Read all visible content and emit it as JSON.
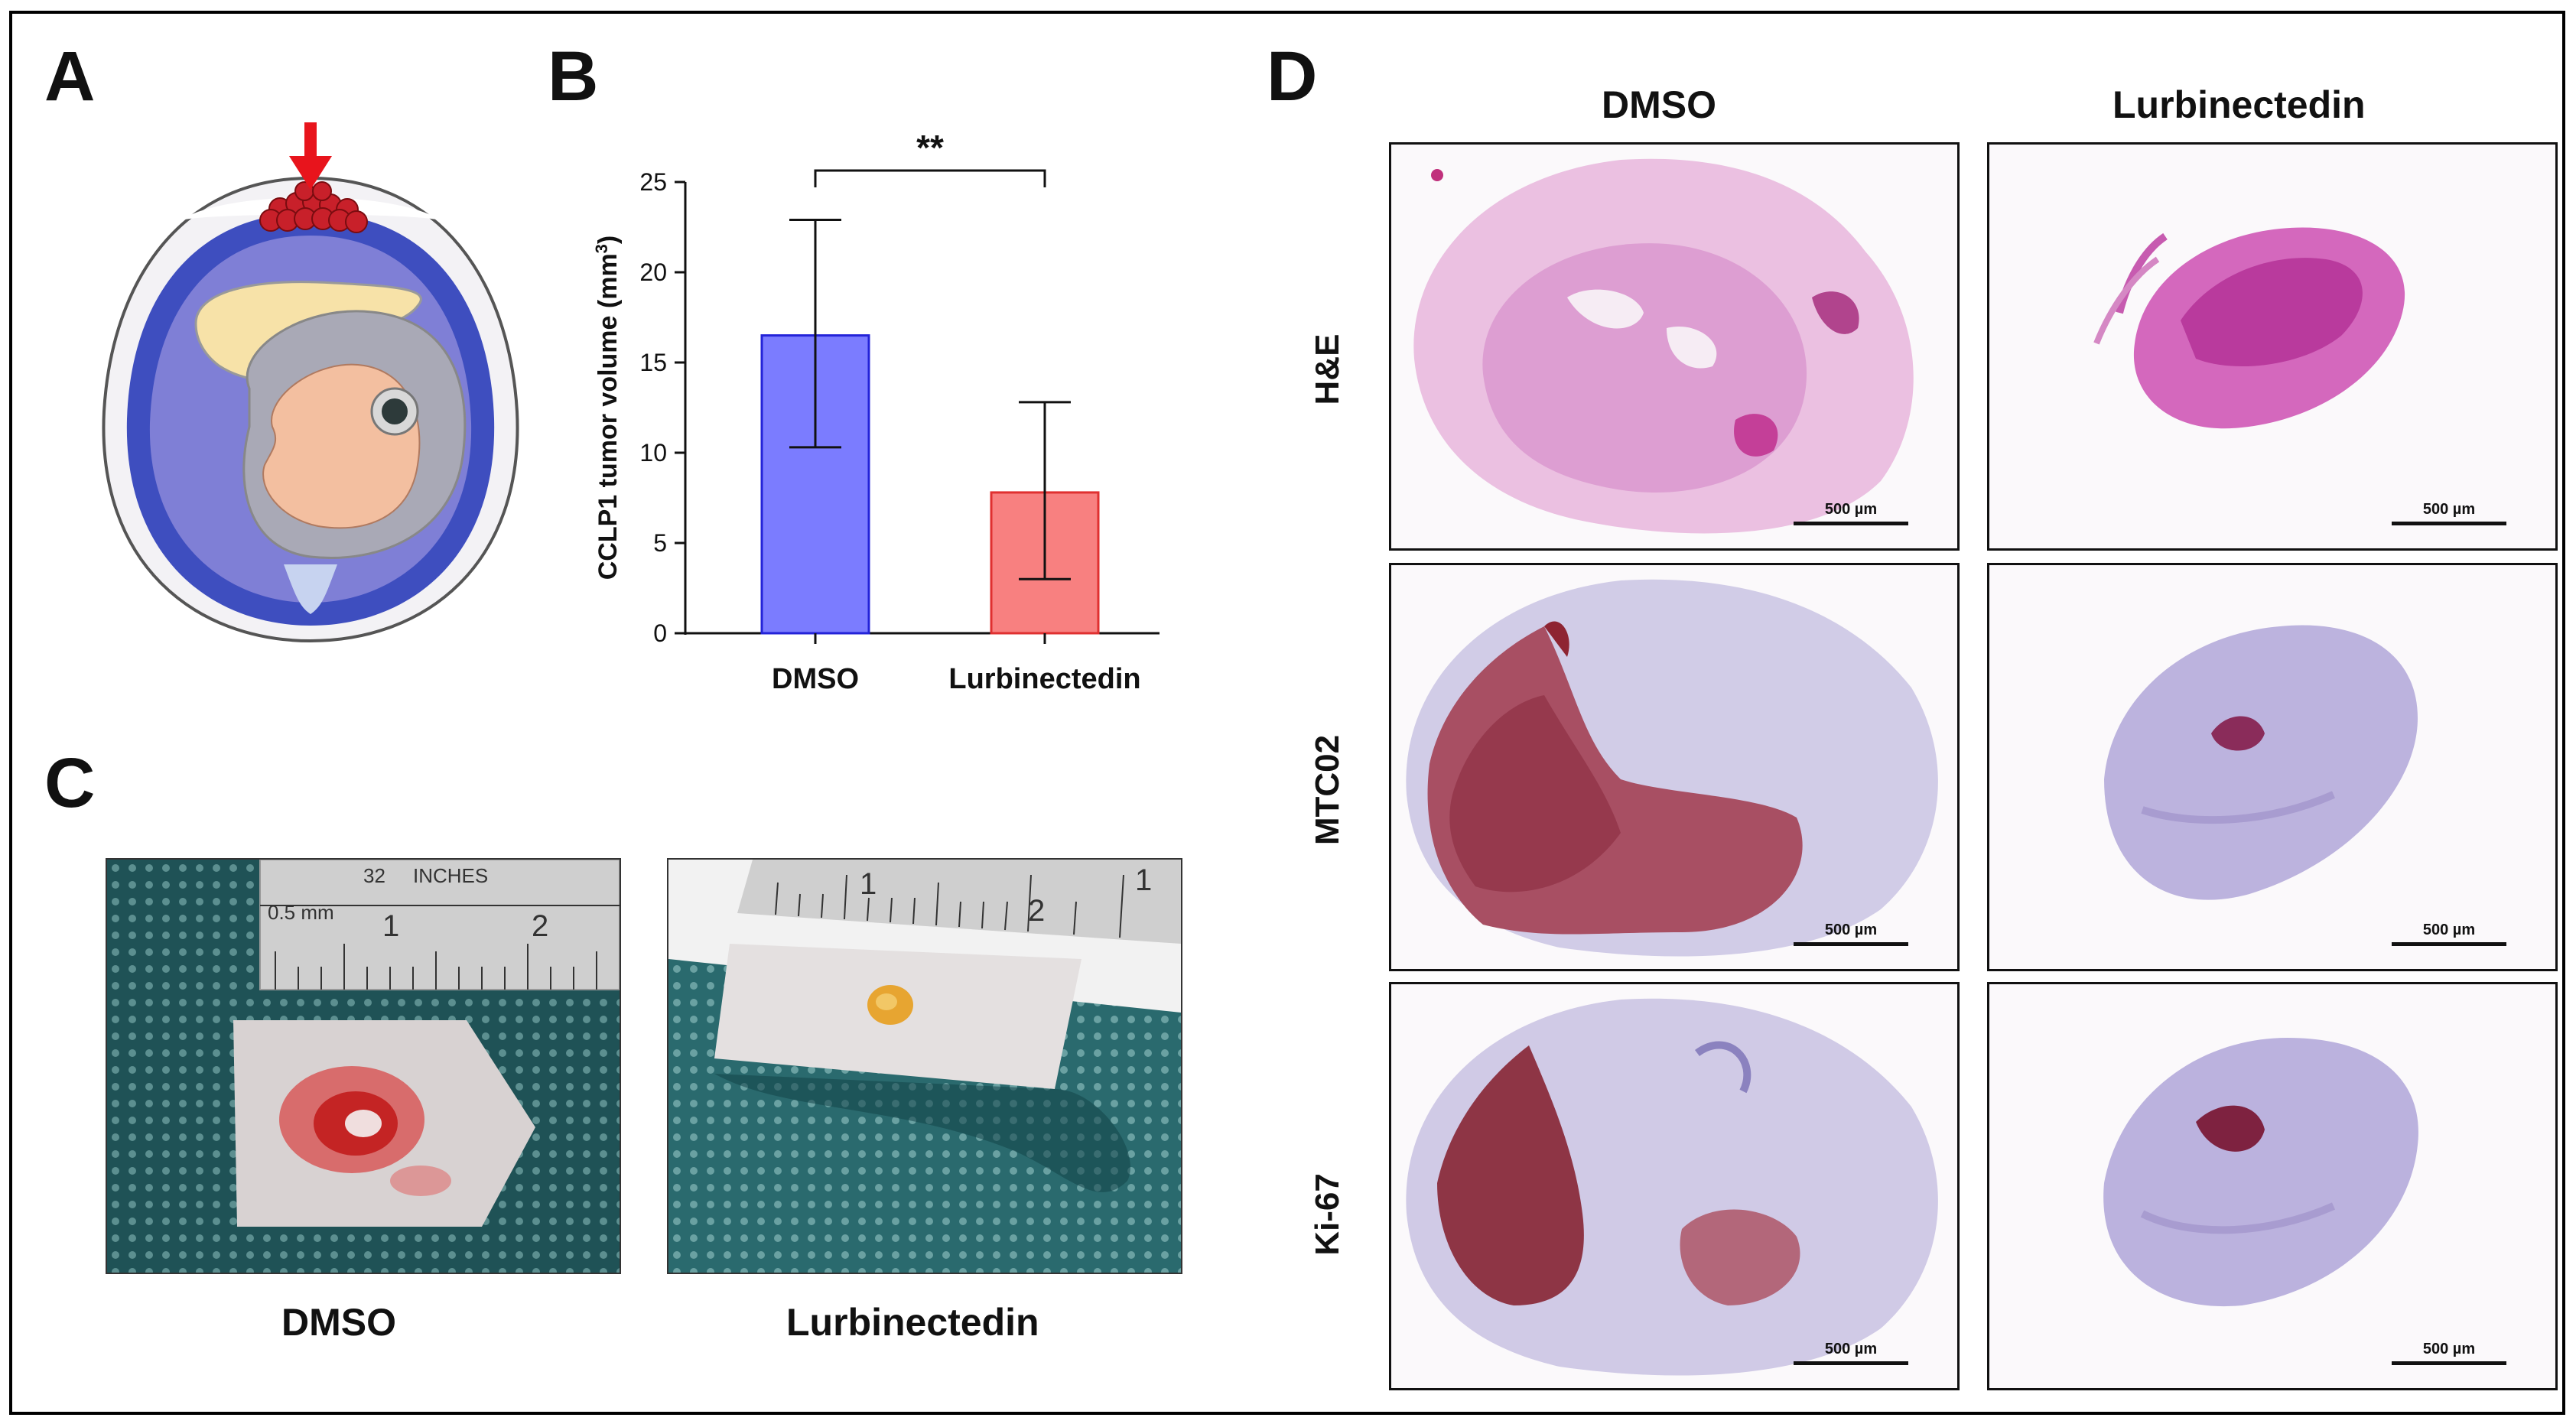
{
  "figure": {
    "panel_letters": {
      "a": "A",
      "b": "B",
      "c": "C",
      "d": "D"
    }
  },
  "panel_a": {
    "description_icon": "egg-cam-inoculation-icon",
    "arrow_color": "#e8141c",
    "tumor_color": "#c8202a"
  },
  "panel_b": {
    "significance": "**",
    "colors": {
      "dmso": "#7b7cff",
      "lurbinectedin": "#f88080"
    }
  },
  "chart_data": {
    "type": "bar",
    "categories": [
      "DMSO",
      "Lurbinectedin"
    ],
    "values": [
      16.5,
      7.8
    ],
    "error_upper": [
      22.9,
      12.8
    ],
    "error_lower": [
      10.3,
      3.0
    ],
    "ylabel_main": "CCLP1 tumor volume (mm",
    "ylabel_sup": "3",
    "ylabel_end": ")",
    "ylim": [
      0,
      25
    ],
    "yticks": [
      0,
      5,
      10,
      15,
      20,
      25
    ],
    "significance_label": "**"
  },
  "panel_c": {
    "left_caption": "DMSO",
    "right_caption": "Lurbinectedin",
    "ruler_left_text": [
      "0.5 mm",
      "32",
      "INCHES",
      "1",
      "2"
    ],
    "ruler_right_text": [
      "1",
      "2",
      "1"
    ]
  },
  "panel_d": {
    "columns": [
      "DMSO",
      "Lurbinectedin"
    ],
    "rows": [
      "H&E",
      "MTC02",
      "Ki-67"
    ],
    "scale_bar_label": "500 µm"
  }
}
